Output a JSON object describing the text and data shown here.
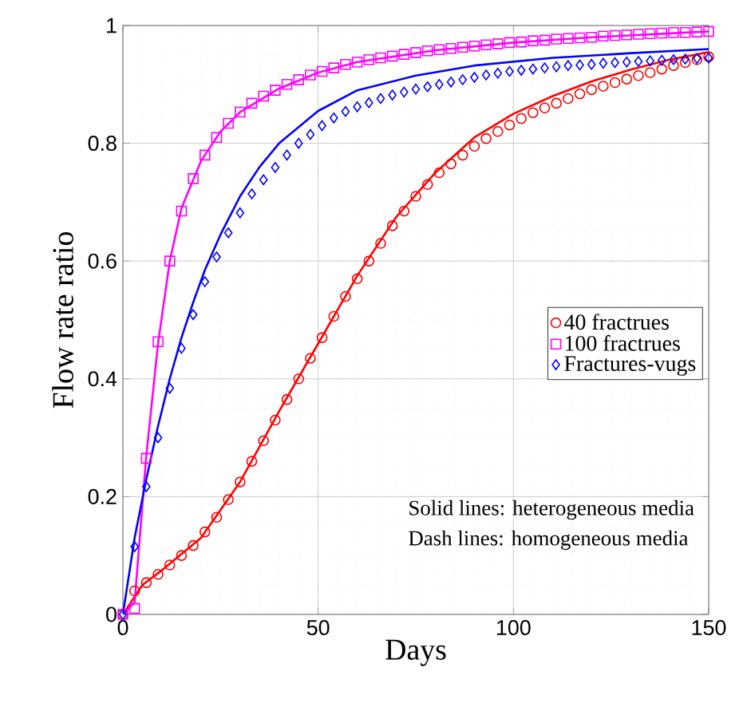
{
  "chart_data": {
    "type": "line",
    "xlabel": "Days",
    "ylabel": "Flow rate ratio",
    "xlim": [
      0,
      150
    ],
    "ylim": [
      0,
      1
    ],
    "xticks": [
      0,
      50,
      100,
      150
    ],
    "yticks": [
      0,
      0.2,
      0.4,
      0.6,
      0.8,
      1
    ],
    "grid": true,
    "legend": "right",
    "annotations": [
      "Solid lines: heterogeneous media",
      "Dash lines: homogeneous media"
    ],
    "series": [
      {
        "name": "40 fractrues",
        "type": "scatter",
        "marker": "circle",
        "color": "#ff0000",
        "x": [
          0,
          3,
          6,
          9,
          12,
          15,
          18,
          21,
          24,
          27,
          30,
          33,
          36,
          39,
          42,
          45,
          48,
          51,
          54,
          57,
          60,
          63,
          66,
          69,
          72,
          75,
          78,
          81,
          84,
          87,
          90,
          93,
          96,
          99,
          102,
          105,
          108,
          111,
          114,
          117,
          120,
          123,
          126,
          129,
          132,
          135,
          138,
          141,
          144,
          147,
          150
        ],
        "values": [
          0,
          0.04,
          0.054,
          0.068,
          0.084,
          0.1,
          0.117,
          0.14,
          0.165,
          0.195,
          0.225,
          0.26,
          0.295,
          0.33,
          0.365,
          0.4,
          0.435,
          0.47,
          0.506,
          0.54,
          0.57,
          0.6,
          0.63,
          0.66,
          0.685,
          0.71,
          0.73,
          0.75,
          0.765,
          0.78,
          0.795,
          0.808,
          0.82,
          0.831,
          0.842,
          0.852,
          0.86,
          0.868,
          0.876,
          0.884,
          0.891,
          0.897,
          0.903,
          0.909,
          0.915,
          0.92,
          0.926,
          0.932,
          0.937,
          0.942,
          0.947
        ]
      },
      {
        "name": "100 fractrues",
        "type": "scatter",
        "marker": "square",
        "color": "#ff00ff",
        "x": [
          0,
          3,
          6,
          9,
          12,
          15,
          18,
          21,
          24,
          27,
          30,
          33,
          36,
          39,
          42,
          45,
          48,
          51,
          54,
          57,
          60,
          63,
          66,
          69,
          72,
          75,
          78,
          81,
          84,
          87,
          90,
          93,
          96,
          99,
          102,
          105,
          108,
          111,
          114,
          117,
          120,
          123,
          126,
          129,
          132,
          135,
          138,
          141,
          144,
          147,
          150
        ],
        "values": [
          0,
          0.01,
          0.265,
          0.463,
          0.6,
          0.685,
          0.74,
          0.78,
          0.81,
          0.834,
          0.853,
          0.868,
          0.88,
          0.89,
          0.9,
          0.908,
          0.916,
          0.922,
          0.928,
          0.934,
          0.938,
          0.942,
          0.945,
          0.948,
          0.951,
          0.954,
          0.957,
          0.959,
          0.961,
          0.963,
          0.965,
          0.967,
          0.969,
          0.971,
          0.972,
          0.974,
          0.975,
          0.977,
          0.978,
          0.979,
          0.98,
          0.982,
          0.983,
          0.984,
          0.985,
          0.986,
          0.987,
          0.988,
          0.988,
          0.989,
          0.99
        ]
      },
      {
        "name": "Fractures-vugs",
        "type": "scatter",
        "marker": "diamond",
        "color": "#0000ff",
        "x": [
          0,
          3,
          6,
          9,
          12,
          15,
          18,
          21,
          24,
          27,
          30,
          33,
          36,
          39,
          42,
          45,
          48,
          51,
          54,
          57,
          60,
          63,
          66,
          69,
          72,
          75,
          78,
          81,
          84,
          87,
          90,
          93,
          96,
          99,
          102,
          105,
          108,
          111,
          114,
          117,
          120,
          123,
          126,
          129,
          132,
          135,
          138,
          141,
          144,
          147,
          150
        ],
        "values": [
          0,
          0.115,
          0.217,
          0.3,
          0.384,
          0.452,
          0.509,
          0.565,
          0.607,
          0.648,
          0.682,
          0.714,
          0.738,
          0.759,
          0.78,
          0.8,
          0.815,
          0.83,
          0.843,
          0.854,
          0.862,
          0.869,
          0.876,
          0.882,
          0.887,
          0.892,
          0.896,
          0.9,
          0.904,
          0.908,
          0.912,
          0.916,
          0.919,
          0.922,
          0.924,
          0.926,
          0.928,
          0.93,
          0.932,
          0.933,
          0.934,
          0.936,
          0.937,
          0.938,
          0.939,
          0.94,
          0.941,
          0.942,
          0.943,
          0.944,
          0.945
        ]
      },
      {
        "line_style": "solid",
        "color": "#ff0000",
        "x": [
          0,
          5,
          10,
          20,
          30,
          40,
          50,
          60,
          70,
          80,
          90,
          100,
          110,
          120,
          130,
          140,
          150
        ],
        "values": [
          0,
          0.05,
          0.075,
          0.13,
          0.225,
          0.345,
          0.46,
          0.575,
          0.675,
          0.75,
          0.81,
          0.85,
          0.88,
          0.905,
          0.925,
          0.942,
          0.955
        ]
      },
      {
        "line_style": "solid",
        "color": "#ff00ff",
        "x": [
          0,
          3,
          6,
          9,
          12,
          15,
          20,
          25,
          30,
          40,
          50,
          60,
          80,
          100,
          120,
          150
        ],
        "values": [
          0,
          0.02,
          0.27,
          0.46,
          0.6,
          0.69,
          0.77,
          0.82,
          0.853,
          0.893,
          0.92,
          0.938,
          0.958,
          0.971,
          0.98,
          0.99
        ]
      },
      {
        "line_style": "solid",
        "color": "#0000ff",
        "x": [
          0,
          3,
          6,
          9,
          12,
          15,
          18,
          21,
          25,
          30,
          35,
          40,
          50,
          60,
          75,
          90,
          110,
          130,
          150
        ],
        "values": [
          0,
          0.13,
          0.23,
          0.32,
          0.4,
          0.47,
          0.53,
          0.585,
          0.645,
          0.71,
          0.76,
          0.8,
          0.855,
          0.89,
          0.915,
          0.932,
          0.945,
          0.953,
          0.96
        ]
      }
    ]
  }
}
